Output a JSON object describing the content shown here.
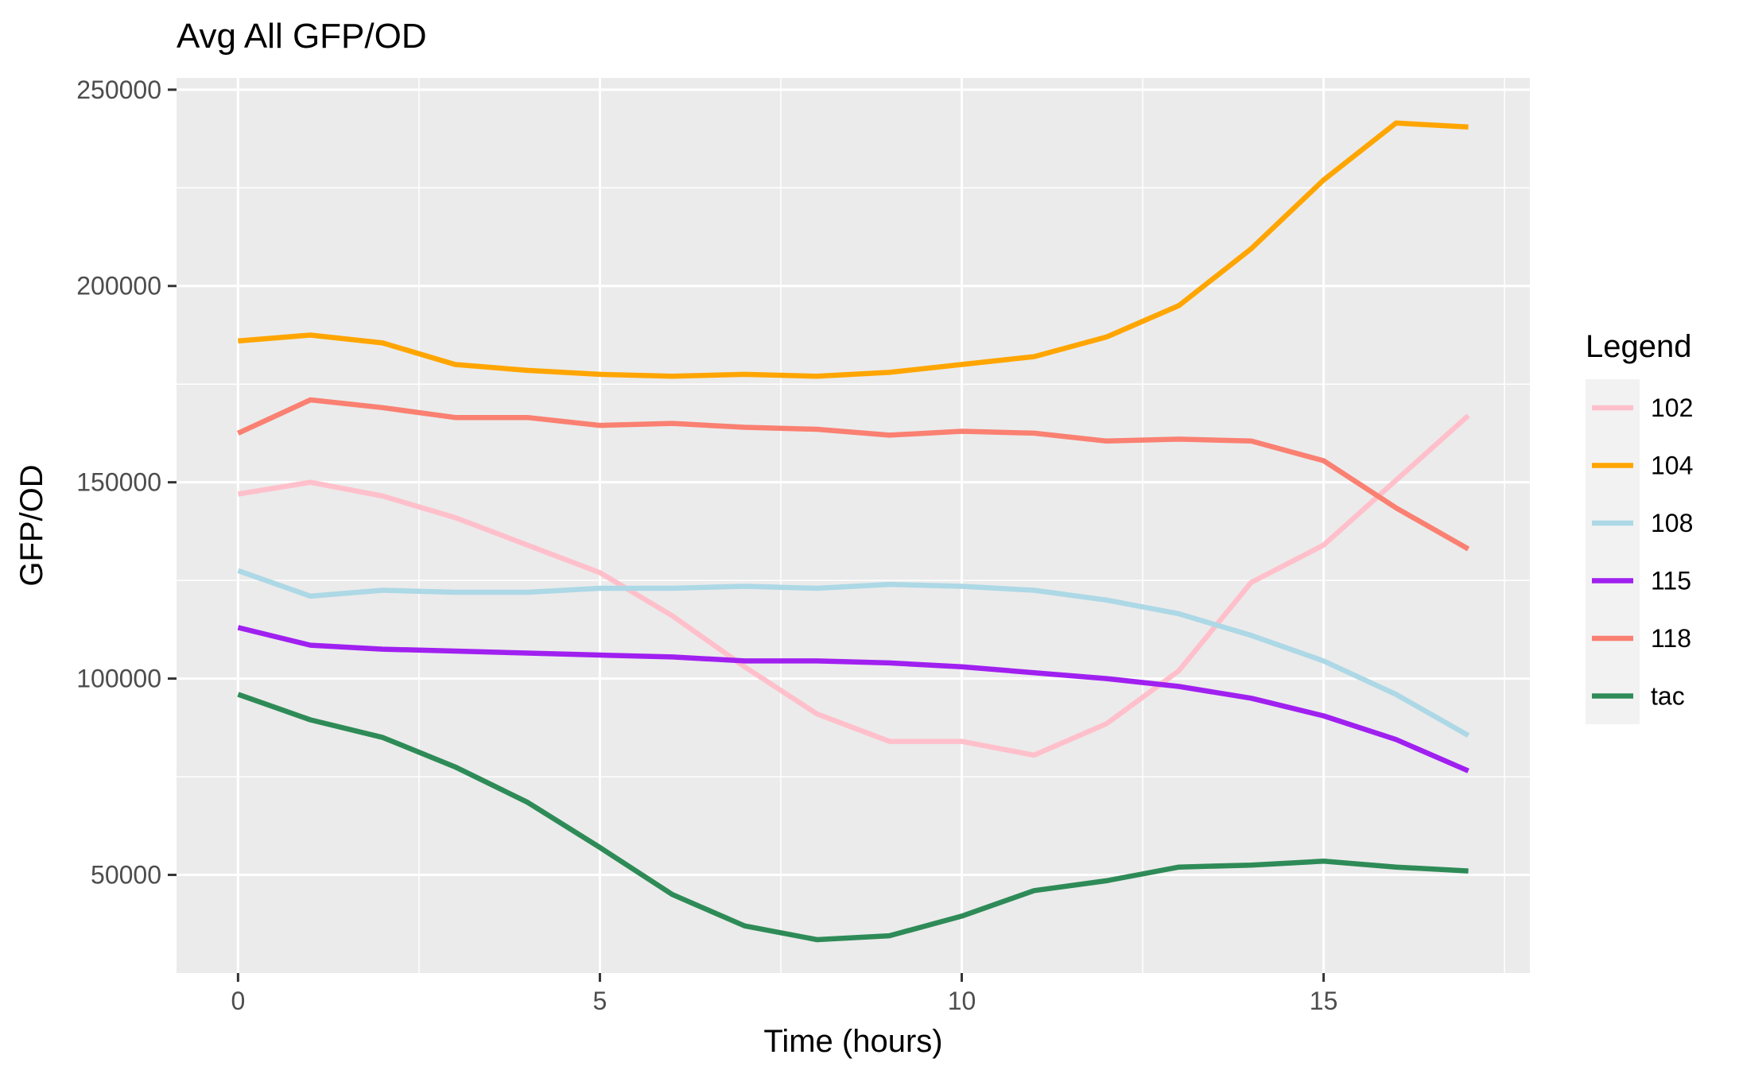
{
  "chart_data": {
    "type": "line",
    "title": "Avg All GFP/OD",
    "xlabel": "Time (hours)",
    "ylabel": "GFP/OD",
    "xlim": [
      -0.85,
      17.85
    ],
    "ylim": [
      25000,
      253000
    ],
    "x_ticks": [
      0,
      5,
      10,
      15
    ],
    "x_tick_labels": [
      "0",
      "5",
      "10",
      "15"
    ],
    "y_ticks": [
      50000,
      100000,
      150000,
      200000,
      250000
    ],
    "y_tick_labels": [
      "50000",
      "100000",
      "150000",
      "200000",
      "250000"
    ],
    "grid": true,
    "legend": {
      "title": "Legend",
      "position": "right"
    },
    "x": [
      0,
      1,
      2,
      3,
      4,
      5,
      6,
      7,
      8,
      9,
      10,
      11,
      12,
      13,
      14,
      15,
      16,
      17
    ],
    "series": [
      {
        "name": "102",
        "color": "#FFC0CB",
        "values": [
          147000,
          150000,
          146500,
          141000,
          134000,
          127000,
          116000,
          103000,
          91000,
          84000,
          84000,
          80500,
          88500,
          102000,
          124500,
          134000,
          150500,
          167000
        ]
      },
      {
        "name": "104",
        "color": "#FFA500",
        "values": [
          186000,
          187500,
          185500,
          180000,
          178500,
          177500,
          177000,
          177500,
          177000,
          178000,
          180000,
          182000,
          187000,
          195000,
          209500,
          227000,
          241500,
          240500
        ]
      },
      {
        "name": "108",
        "color": "#ADD8E6",
        "values": [
          127500,
          121000,
          122500,
          122000,
          122000,
          123000,
          123000,
          123500,
          123000,
          124000,
          123500,
          122500,
          120000,
          116500,
          111000,
          104500,
          96000,
          85500
        ]
      },
      {
        "name": "115",
        "color": "#A020F0",
        "values": [
          113000,
          108500,
          107500,
          107000,
          106500,
          106000,
          105500,
          104500,
          104500,
          104000,
          103000,
          101500,
          100000,
          98000,
          95000,
          90500,
          84500,
          76500
        ]
      },
      {
        "name": "118",
        "color": "#FA8072",
        "values": [
          162500,
          171000,
          169000,
          166500,
          166500,
          164500,
          165000,
          164000,
          163500,
          162000,
          163000,
          162500,
          160500,
          161000,
          160500,
          155500,
          143500,
          133000
        ]
      },
      {
        "name": "tac",
        "color": "#2E8B57",
        "values": [
          96000,
          89500,
          85000,
          77500,
          68500,
          57000,
          45000,
          37000,
          33500,
          34500,
          39500,
          46000,
          48500,
          52000,
          52500,
          53500,
          52000,
          51000
        ]
      }
    ]
  }
}
